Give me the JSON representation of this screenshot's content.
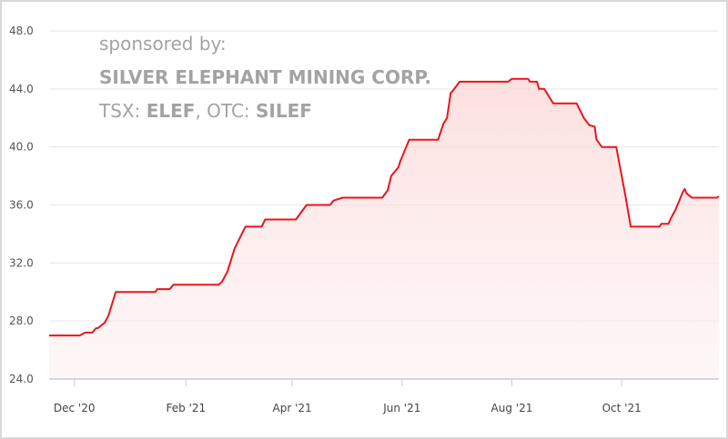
{
  "sponsor": {
    "line1": "sponsored by:",
    "company": "SILVER ELEPHANT MINING CORP.",
    "tsx_label": "TSX: ",
    "tsx_symbol": "ELEF",
    "sep": ", ",
    "otc_label": "OTC: ",
    "otc_symbol": "SILEF"
  },
  "chart_data": {
    "type": "area",
    "title": "",
    "xlabel": "",
    "ylabel": "",
    "xlim": [
      "2020-11-17",
      "2021-11-24"
    ],
    "ylim": [
      24,
      48
    ],
    "yticks": [
      24,
      28,
      32,
      36,
      40,
      44,
      48
    ],
    "ytick_labels": [
      "24.0",
      "28.0",
      "32.0",
      "36.0",
      "40.0",
      "44.0",
      "48.0"
    ],
    "xticks": [
      "2020-12-01",
      "2021-02-01",
      "2021-04-01",
      "2021-06-01",
      "2021-08-01",
      "2021-10-01"
    ],
    "xtick_labels": [
      "Dec '20",
      "Feb '21",
      "Apr '21",
      "Jun '21",
      "Aug '21",
      "Oct '21"
    ],
    "grid": true,
    "legend": "none",
    "colors": {
      "line": "#e8161d",
      "fill": "#fde3e3",
      "grid": "#e6e6e6",
      "axis": "#c5ccd6"
    },
    "series": [
      {
        "x": [
          "2020-11-17",
          "2020-12-04",
          "2020-12-07",
          "2020-12-11",
          "2020-12-13",
          "2020-12-14",
          "2020-12-18",
          "2020-12-20",
          "2020-12-24",
          "2021-01-15",
          "2021-01-16",
          "2021-01-23",
          "2021-01-25",
          "2021-02-19",
          "2021-02-21",
          "2021-02-24",
          "2021-02-28",
          "2021-03-04",
          "2021-03-06",
          "2021-03-15",
          "2021-03-17",
          "2021-04-03",
          "2021-04-06",
          "2021-04-09",
          "2021-04-22",
          "2021-04-24",
          "2021-04-29",
          "2021-05-21",
          "2021-05-24",
          "2021-05-26",
          "2021-05-30",
          "2021-05-31",
          "2021-06-03",
          "2021-06-05",
          "2021-06-21",
          "2021-06-24",
          "2021-06-26",
          "2021-06-28",
          "2021-06-30",
          "2021-07-03",
          "2021-07-30",
          "2021-08-01",
          "2021-08-10",
          "2021-08-11",
          "2021-08-15",
          "2021-08-16",
          "2021-08-19",
          "2021-08-22",
          "2021-08-24",
          "2021-09-06",
          "2021-09-08",
          "2021-09-10",
          "2021-09-13",
          "2021-09-16",
          "2021-09-17",
          "2021-09-20",
          "2021-09-28",
          "2021-10-03",
          "2021-10-06",
          "2021-10-22",
          "2021-10-23",
          "2021-10-27",
          "2021-10-28",
          "2021-10-31",
          "2021-11-02",
          "2021-11-04",
          "2021-11-05",
          "2021-11-06",
          "2021-11-09",
          "2021-11-23",
          "2021-11-24"
        ],
        "y": [
          27.0,
          27.0,
          27.2,
          27.2,
          27.5,
          27.5,
          27.9,
          28.4,
          30.0,
          30.0,
          30.2,
          30.2,
          30.5,
          30.5,
          30.7,
          31.4,
          33.0,
          34.0,
          34.5,
          34.5,
          35.0,
          35.0,
          35.5,
          36.0,
          36.0,
          36.3,
          36.5,
          36.5,
          37.0,
          38.0,
          38.6,
          39.0,
          39.9,
          40.5,
          40.5,
          41.6,
          42.0,
          43.7,
          44.0,
          44.5,
          44.5,
          44.7,
          44.7,
          44.5,
          44.5,
          44.0,
          44.0,
          43.4,
          43.0,
          43.0,
          42.5,
          42.0,
          41.5,
          41.4,
          40.5,
          40.0,
          40.0,
          36.7,
          34.5,
          34.5,
          34.7,
          34.7,
          35.0,
          35.7,
          36.3,
          36.9,
          37.1,
          36.8,
          36.5,
          36.5,
          36.6
        ]
      }
    ]
  }
}
